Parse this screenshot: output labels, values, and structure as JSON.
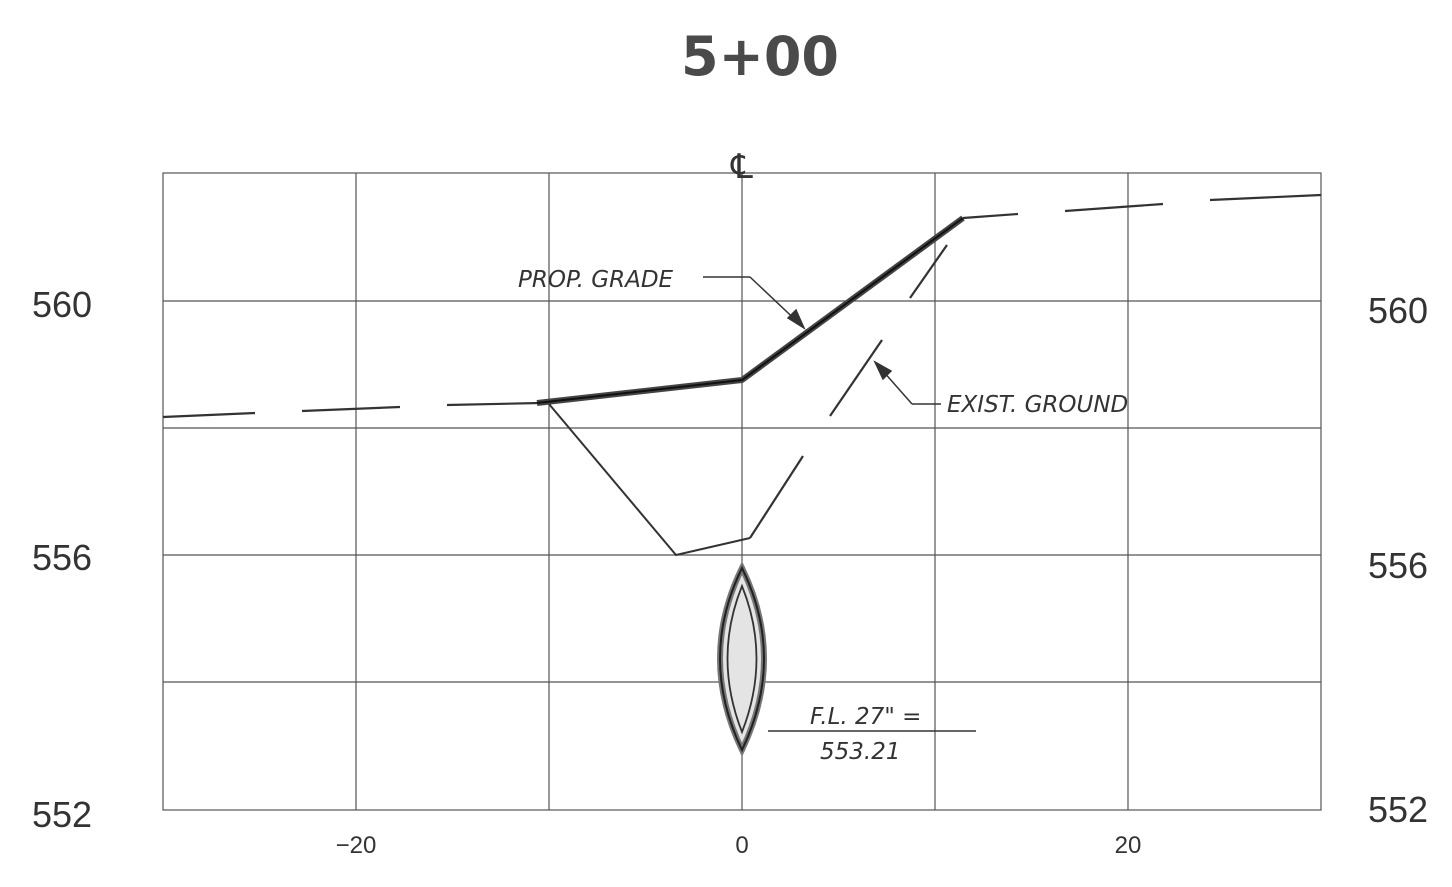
{
  "title": "5+00",
  "centerline_symbol": "℄",
  "left_elevations": [
    "560",
    "556",
    "552"
  ],
  "right_elevations": [
    "560",
    "556",
    "552"
  ],
  "offsets": [
    "−20",
    "0",
    "20"
  ],
  "labels": {
    "prop_grade": "PROP. GRADE",
    "exist_ground": "EXIST. GROUND",
    "fl_line1": "F.L. 27\" =",
    "fl_line2": "553.21"
  }
}
